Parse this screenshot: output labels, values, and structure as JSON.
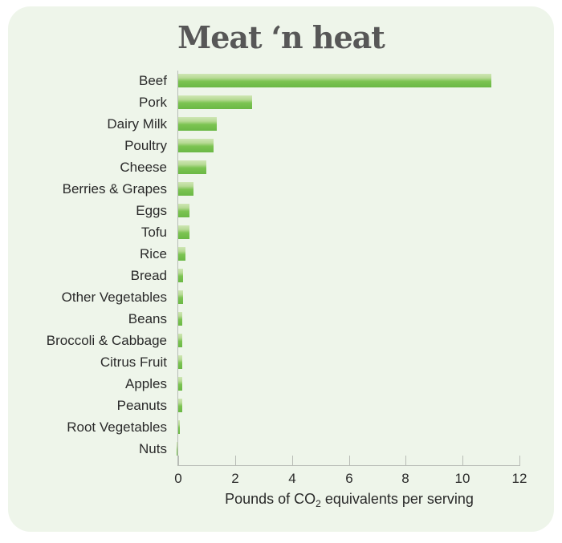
{
  "chart_data": {
    "type": "bar",
    "orientation": "horizontal",
    "title": "Meat ‘n heat",
    "xlabel_parts": {
      "before": "Pounds of CO",
      "sub": "2",
      "after": " equivalents per serving"
    },
    "xlabel": "Pounds of CO2 equivalents per serving",
    "ylabel": "",
    "xlim": [
      0,
      12
    ],
    "xticks": [
      "0",
      "2",
      "4",
      "6",
      "8",
      "10",
      "12"
    ],
    "grid": false,
    "legend": null,
    "bar_color": "#7cc452",
    "background": "#eef5ea",
    "categories": [
      "Beef",
      "Pork",
      "Dairy Milk",
      "Poultry",
      "Cheese",
      "Berries & Grapes",
      "Eggs",
      "Tofu",
      "Rice",
      "Bread",
      "Other Vegetables",
      "Beans",
      "Broccoli & Cabbage",
      "Citrus Fruit",
      "Apples",
      "Peanuts",
      "Root Vegetables",
      "Nuts"
    ],
    "values": [
      11.0,
      2.6,
      1.36,
      1.24,
      1.0,
      0.55,
      0.4,
      0.4,
      0.26,
      0.17,
      0.16,
      0.15,
      0.15,
      0.14,
      0.14,
      0.13,
      0.07,
      -0.05
    ]
  }
}
